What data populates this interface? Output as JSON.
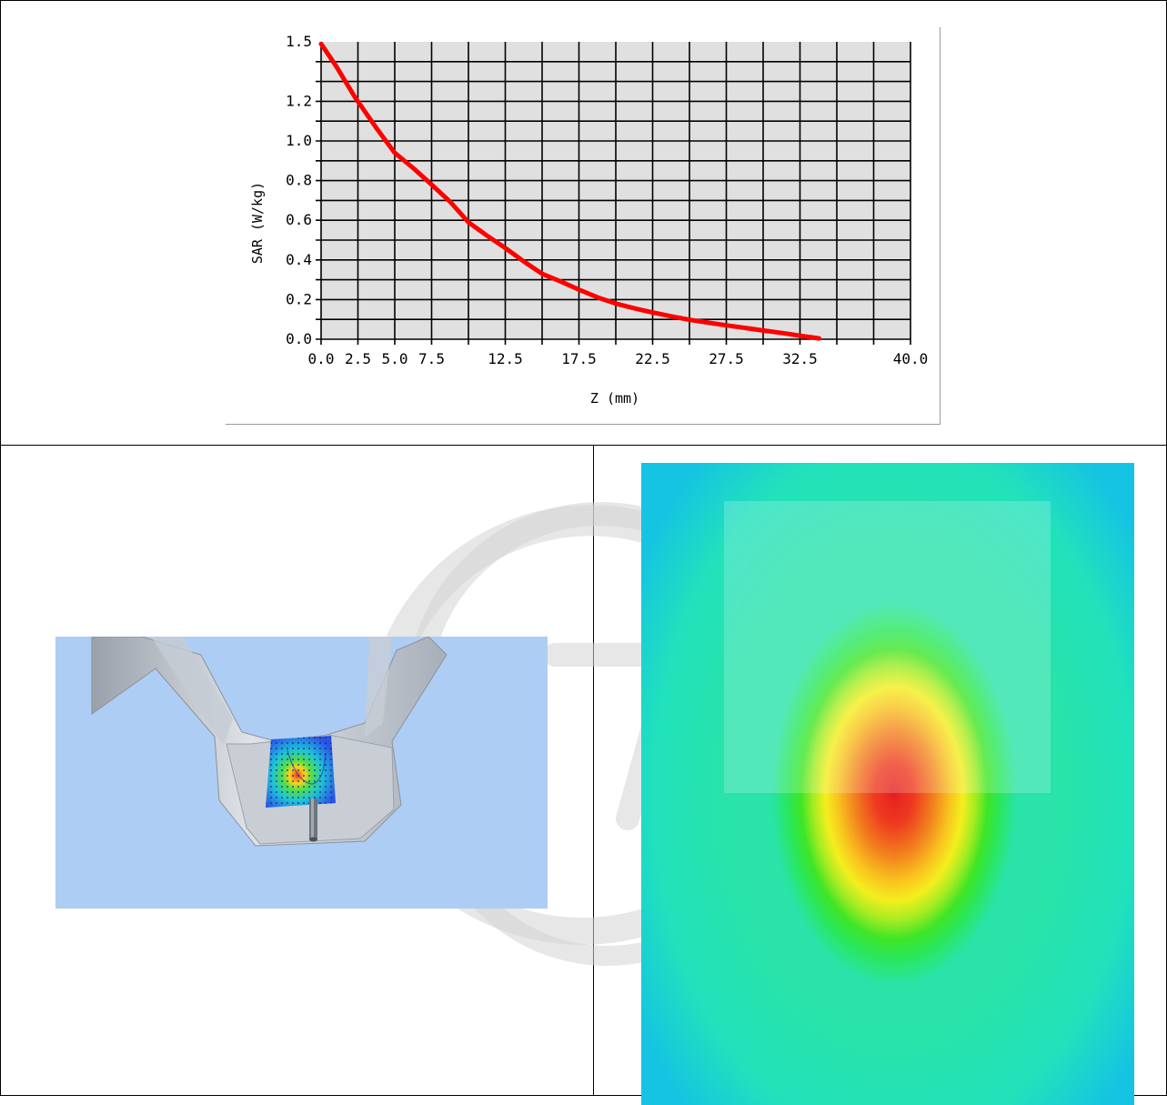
{
  "chart_data": {
    "type": "line",
    "title": "",
    "xlabel": "Z (mm)",
    "ylabel": "SAR (W/kg)",
    "xlim": [
      0,
      40
    ],
    "ylim": [
      0,
      1.5
    ],
    "x_ticks": [
      "0.0",
      "2.5",
      "5.0",
      "7.5",
      "12.5",
      "17.5",
      "22.5",
      "27.5",
      "32.5",
      "40.0"
    ],
    "y_ticks": [
      "0.0",
      "0.2",
      "0.4",
      "0.6",
      "0.8",
      "1.0",
      "1.2",
      "1.5"
    ],
    "x_grid": [
      0,
      2.5,
      5,
      7.5,
      10,
      12.5,
      15,
      17.5,
      20,
      22.5,
      25,
      27.5,
      30,
      32.5,
      35,
      37.5,
      40
    ],
    "y_grid": [
      0,
      0.1,
      0.2,
      0.3,
      0.4,
      0.5,
      0.6,
      0.7,
      0.8,
      0.9,
      1.0,
      1.1,
      1.2,
      1.3,
      1.4
    ],
    "grid": true,
    "series": [
      {
        "color": "#ff0000",
        "x": [
          0,
          1,
          2.3,
          3.8,
          5,
          6.3,
          7.5,
          8.8,
          10,
          11.3,
          12.5,
          13.8,
          15,
          16.3,
          17.5,
          18.8,
          20,
          21.3,
          22.5,
          23.8,
          25,
          26.3,
          27.5,
          28.8,
          30,
          31.3,
          32.5,
          33.8
        ],
        "y": [
          1.49,
          1.38,
          1.22,
          1.06,
          0.94,
          0.86,
          0.78,
          0.69,
          0.59,
          0.52,
          0.46,
          0.39,
          0.33,
          0.29,
          0.25,
          0.21,
          0.18,
          0.155,
          0.135,
          0.115,
          0.098,
          0.083,
          0.07,
          0.057,
          0.044,
          0.031,
          0.018,
          0.004
        ]
      }
    ]
  },
  "colors": {
    "plot_background": "#e0e0e0",
    "grid": "#000000",
    "setup_background": "#aecdf4",
    "heatmap_peak": "#e52020"
  }
}
